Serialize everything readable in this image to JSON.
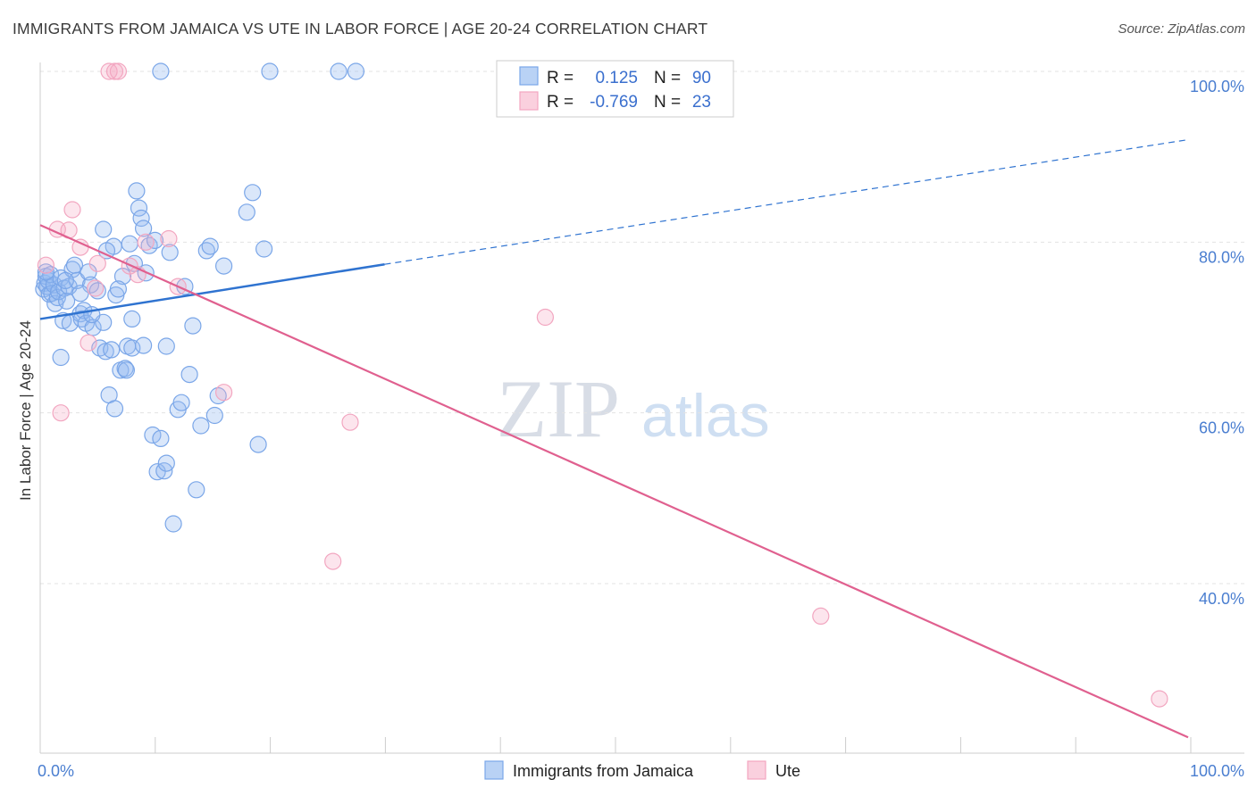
{
  "header": {
    "title": "IMMIGRANTS FROM JAMAICA VS UTE IN LABOR FORCE | AGE 20-24 CORRELATION CHART",
    "source": "Source: ZipAtlas.com"
  },
  "watermark": {
    "part1": "ZIP",
    "part2": "atlas"
  },
  "legend": {
    "rows": [
      {
        "r_label": "R =",
        "r_value": "0.125",
        "n_label": "N =",
        "n_value": "90"
      },
      {
        "r_label": "R =",
        "r_value": "-0.769",
        "n_label": "N =",
        "n_value": "23"
      }
    ]
  },
  "chart_data": {
    "type": "scatter",
    "title": "IMMIGRANTS FROM JAMAICA VS UTE IN LABOR FORCE | AGE 20-24 CORRELATION CHART",
    "xlabel": "",
    "ylabel": "In Labor Force | Age 20-24",
    "xlim": [
      0,
      100
    ],
    "ylim": [
      20,
      103
    ],
    "x_tick_labels": [
      {
        "value": 0,
        "label": "0.0%"
      },
      {
        "value": 100,
        "label": "100.0%"
      }
    ],
    "y_tick_labels": [
      {
        "value": 40,
        "label": "40.0%"
      },
      {
        "value": 60,
        "label": "60.0%"
      },
      {
        "value": 80,
        "label": "80.0%"
      },
      {
        "value": 100,
        "label": "100.0%"
      }
    ],
    "gridlines": "horizontal dashed",
    "legend_position": "top-center",
    "series": [
      {
        "name": "Immigrants from Jamaica",
        "color": "#7aa6e8",
        "line_color": "#2f73d0",
        "R": 0.125,
        "N": 90,
        "trend": {
          "x0": 0,
          "y0": 71.0,
          "x1": 30,
          "y1": 77.4,
          "dashed_to_x": 100,
          "dashed_to_y": 92.0
        },
        "points": [
          [
            0.3,
            74.5
          ],
          [
            0.4,
            75.2
          ],
          [
            0.5,
            76.0
          ],
          [
            0.6,
            74.8
          ],
          [
            0.7,
            75.5
          ],
          [
            0.8,
            73.9
          ],
          [
            0.9,
            76.2
          ],
          [
            1.0,
            74.0
          ],
          [
            1.2,
            75.0
          ],
          [
            1.3,
            72.8
          ],
          [
            1.5,
            73.5
          ],
          [
            1.6,
            74.2
          ],
          [
            1.8,
            75.8
          ],
          [
            2.0,
            70.8
          ],
          [
            2.1,
            74.6
          ],
          [
            2.3,
            73.1
          ],
          [
            2.5,
            74.8
          ],
          [
            2.6,
            70.5
          ],
          [
            2.8,
            76.8
          ],
          [
            3.0,
            77.3
          ],
          [
            3.2,
            75.5
          ],
          [
            3.5,
            71.6
          ],
          [
            3.6,
            71.0
          ],
          [
            3.8,
            72.0
          ],
          [
            4.0,
            70.5
          ],
          [
            4.2,
            76.5
          ],
          [
            4.4,
            75.0
          ],
          [
            4.6,
            70.0
          ],
          [
            5.0,
            74.3
          ],
          [
            5.2,
            67.6
          ],
          [
            5.5,
            70.6
          ],
          [
            5.7,
            67.2
          ],
          [
            6.0,
            62.1
          ],
          [
            6.2,
            67.4
          ],
          [
            6.4,
            79.5
          ],
          [
            6.6,
            73.8
          ],
          [
            7.0,
            65.0
          ],
          [
            7.2,
            76.0
          ],
          [
            7.4,
            65.2
          ],
          [
            7.6,
            67.8
          ],
          [
            7.8,
            79.8
          ],
          [
            8.0,
            71.0
          ],
          [
            8.2,
            77.5
          ],
          [
            8.4,
            86.0
          ],
          [
            8.6,
            84.0
          ],
          [
            8.8,
            82.8
          ],
          [
            9.0,
            81.6
          ],
          [
            9.2,
            76.4
          ],
          [
            9.5,
            79.6
          ],
          [
            9.8,
            57.4
          ],
          [
            10.0,
            80.2
          ],
          [
            10.2,
            53.1
          ],
          [
            10.5,
            57.0
          ],
          [
            10.8,
            53.2
          ],
          [
            11.0,
            54.1
          ],
          [
            11.3,
            78.8
          ],
          [
            11.6,
            47.0
          ],
          [
            12.0,
            60.4
          ],
          [
            12.3,
            61.2
          ],
          [
            12.6,
            74.8
          ],
          [
            13.0,
            64.5
          ],
          [
            13.3,
            70.2
          ],
          [
            13.6,
            51.0
          ],
          [
            14.0,
            58.5
          ],
          [
            14.5,
            79.0
          ],
          [
            14.8,
            79.5
          ],
          [
            15.2,
            59.7
          ],
          [
            15.5,
            62.0
          ],
          [
            16.0,
            77.2
          ],
          [
            18.0,
            83.5
          ],
          [
            18.5,
            85.8
          ],
          [
            19.0,
            56.3
          ],
          [
            19.5,
            79.2
          ],
          [
            5.5,
            81.5
          ],
          [
            6.5,
            60.5
          ],
          [
            7.5,
            65.0
          ],
          [
            8.0,
            67.6
          ],
          [
            9.0,
            67.9
          ],
          [
            11.0,
            67.8
          ],
          [
            3.5,
            74.0
          ],
          [
            1.8,
            66.5
          ],
          [
            0.5,
            76.5
          ],
          [
            10.5,
            100.0
          ],
          [
            20.0,
            100.0
          ],
          [
            26.0,
            100.0
          ],
          [
            27.5,
            100.0
          ],
          [
            4.5,
            71.5
          ],
          [
            2.2,
            75.5
          ],
          [
            5.8,
            79.0
          ],
          [
            6.8,
            74.5
          ]
        ]
      },
      {
        "name": "Ute",
        "color": "#f2a6c0",
        "line_color": "#e0608f",
        "R": -0.769,
        "N": 23,
        "trend": {
          "x0": 0,
          "y0": 82.0,
          "x1": 100,
          "y1": 22.0
        },
        "points": [
          [
            0.5,
            77.3
          ],
          [
            1.5,
            81.5
          ],
          [
            1.8,
            60.0
          ],
          [
            2.5,
            81.4
          ],
          [
            2.8,
            83.8
          ],
          [
            3.5,
            79.4
          ],
          [
            4.2,
            68.2
          ],
          [
            4.8,
            74.6
          ],
          [
            5.0,
            77.5
          ],
          [
            6.0,
            100.0
          ],
          [
            6.5,
            100.0
          ],
          [
            6.8,
            100.0
          ],
          [
            7.8,
            77.2
          ],
          [
            8.5,
            76.2
          ],
          [
            9.2,
            80.0
          ],
          [
            11.2,
            80.4
          ],
          [
            12.0,
            74.8
          ],
          [
            16.0,
            62.4
          ],
          [
            25.5,
            42.6
          ],
          [
            27.0,
            58.9
          ],
          [
            44.0,
            71.2
          ],
          [
            68.0,
            36.2
          ],
          [
            97.5,
            26.5
          ]
        ]
      }
    ]
  }
}
